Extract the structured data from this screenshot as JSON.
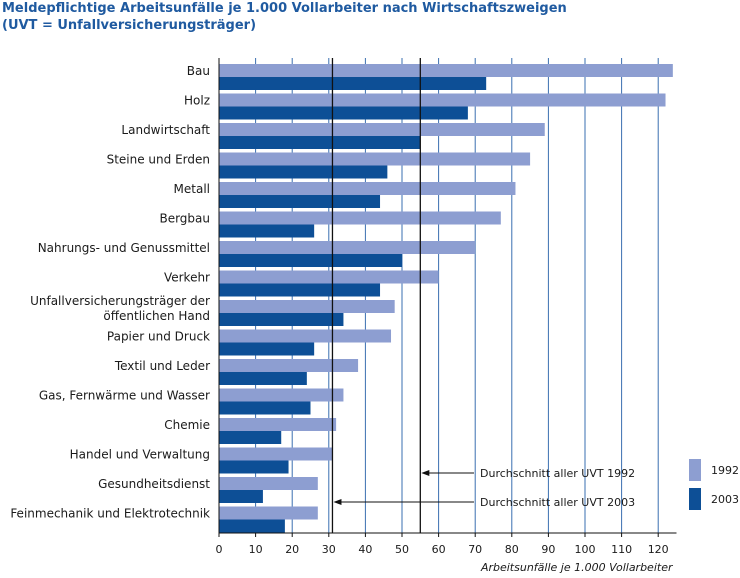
{
  "title_line1": "Meldepflichtige Arbeitsunfälle je 1.000 Vollarbeiter nach Wirtschaftszweigen",
  "title_line2": "(UVT = Unfallversicherungsträger)",
  "colors": {
    "s1992": "#8d9ed1",
    "s2003": "#0d4f96",
    "grid": "#3a6fb0"
  },
  "chart_data": {
    "type": "bar",
    "orientation": "horizontal",
    "categories": [
      "Bau",
      "Holz",
      "Landwirtschaft",
      "Steine und Erden",
      "Metall",
      "Bergbau",
      "Nahrungs- und Genussmittel",
      "Verkehr",
      "Unfallversicherungsträger der öffentlichen Hand",
      "Papier und Druck",
      "Textil und Leder",
      "Gas, Fernwärme und Wasser",
      "Chemie",
      "Handel und Verwaltung",
      "Gesundheitsdienst",
      "Feinmechanik und Elektrotechnik"
    ],
    "category_lines": [
      [
        "Bau"
      ],
      [
        "Holz"
      ],
      [
        "Landwirtschaft"
      ],
      [
        "Steine und Erden"
      ],
      [
        "Metall"
      ],
      [
        "Bergbau"
      ],
      [
        "Nahrungs- und Genussmittel"
      ],
      [
        "Verkehr"
      ],
      [
        "Unfallversicherungsträger der",
        "öffentlichen Hand"
      ],
      [
        "Papier und Druck"
      ],
      [
        "Textil und Leder"
      ],
      [
        "Gas, Fernwärme und Wasser"
      ],
      [
        "Chemie"
      ],
      [
        "Handel und Verwaltung"
      ],
      [
        "Gesundheitsdienst"
      ],
      [
        "Feinmechanik und Elektrotechnik"
      ]
    ],
    "series": [
      {
        "name": "1992",
        "values": [
          124,
          122,
          89,
          85,
          81,
          77,
          70,
          60,
          48,
          47,
          38,
          34,
          32,
          31,
          27,
          27
        ]
      },
      {
        "name": "2003",
        "values": [
          73,
          68,
          55,
          46,
          44,
          26,
          50,
          44,
          34,
          26,
          24,
          25,
          17,
          19,
          12,
          18
        ]
      }
    ],
    "averages": [
      {
        "name": "Durchschnitt aller UVT 1992",
        "value": 55
      },
      {
        "name": "Durchschnitt aller UVT 2003",
        "value": 31
      }
    ],
    "xlim": [
      0,
      125
    ],
    "xticks": [
      0,
      10,
      20,
      30,
      40,
      50,
      60,
      70,
      80,
      90,
      100,
      110,
      120
    ],
    "xlabel": "Arbeitsunfälle je 1.000 Vollarbeiter",
    "legend": [
      "1992",
      "2003"
    ],
    "legend_position": "right-bottom",
    "grid": true
  }
}
